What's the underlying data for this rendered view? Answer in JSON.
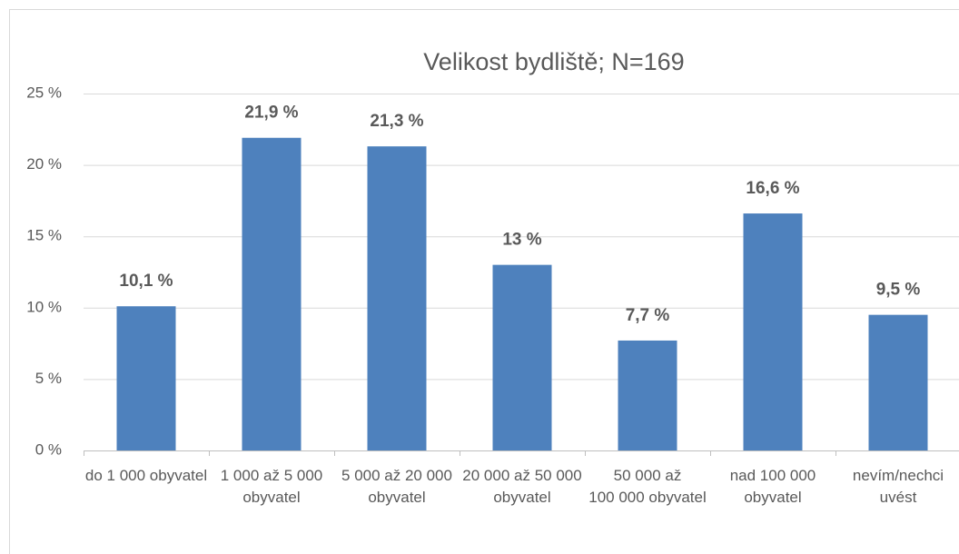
{
  "chart_data": {
    "type": "bar",
    "title": "Velikost bydliště; N=169",
    "categories": [
      "do 1 000 obyvatel",
      "1 000 až 5 000 obyvatel",
      "5 000 až 20 000 obyvatel",
      "20 000 až 50 000 obyvatel",
      "50 000 až 100 000 obyvatel",
      "nad 100 000 obyvatel",
      "nevím/nechci uvést"
    ],
    "values": [
      10.1,
      21.9,
      21.3,
      13,
      7.7,
      16.6,
      9.5
    ],
    "value_labels": [
      "10,1 %",
      "21,9 %",
      "21,3 %",
      "13 %",
      "7,7 %",
      "16,6 %",
      "9,5 %"
    ],
    "color": "#4e81bd",
    "ylim": [
      0,
      25
    ],
    "yticks": [
      {
        "value": 0,
        "label": "0 %"
      },
      {
        "value": 5,
        "label": "5 %"
      },
      {
        "value": 10,
        "label": "10 %"
      },
      {
        "value": 15,
        "label": "15 %"
      },
      {
        "value": 20,
        "label": "20 %"
      },
      {
        "value": 25,
        "label": "25 %"
      }
    ],
    "grid": true
  }
}
